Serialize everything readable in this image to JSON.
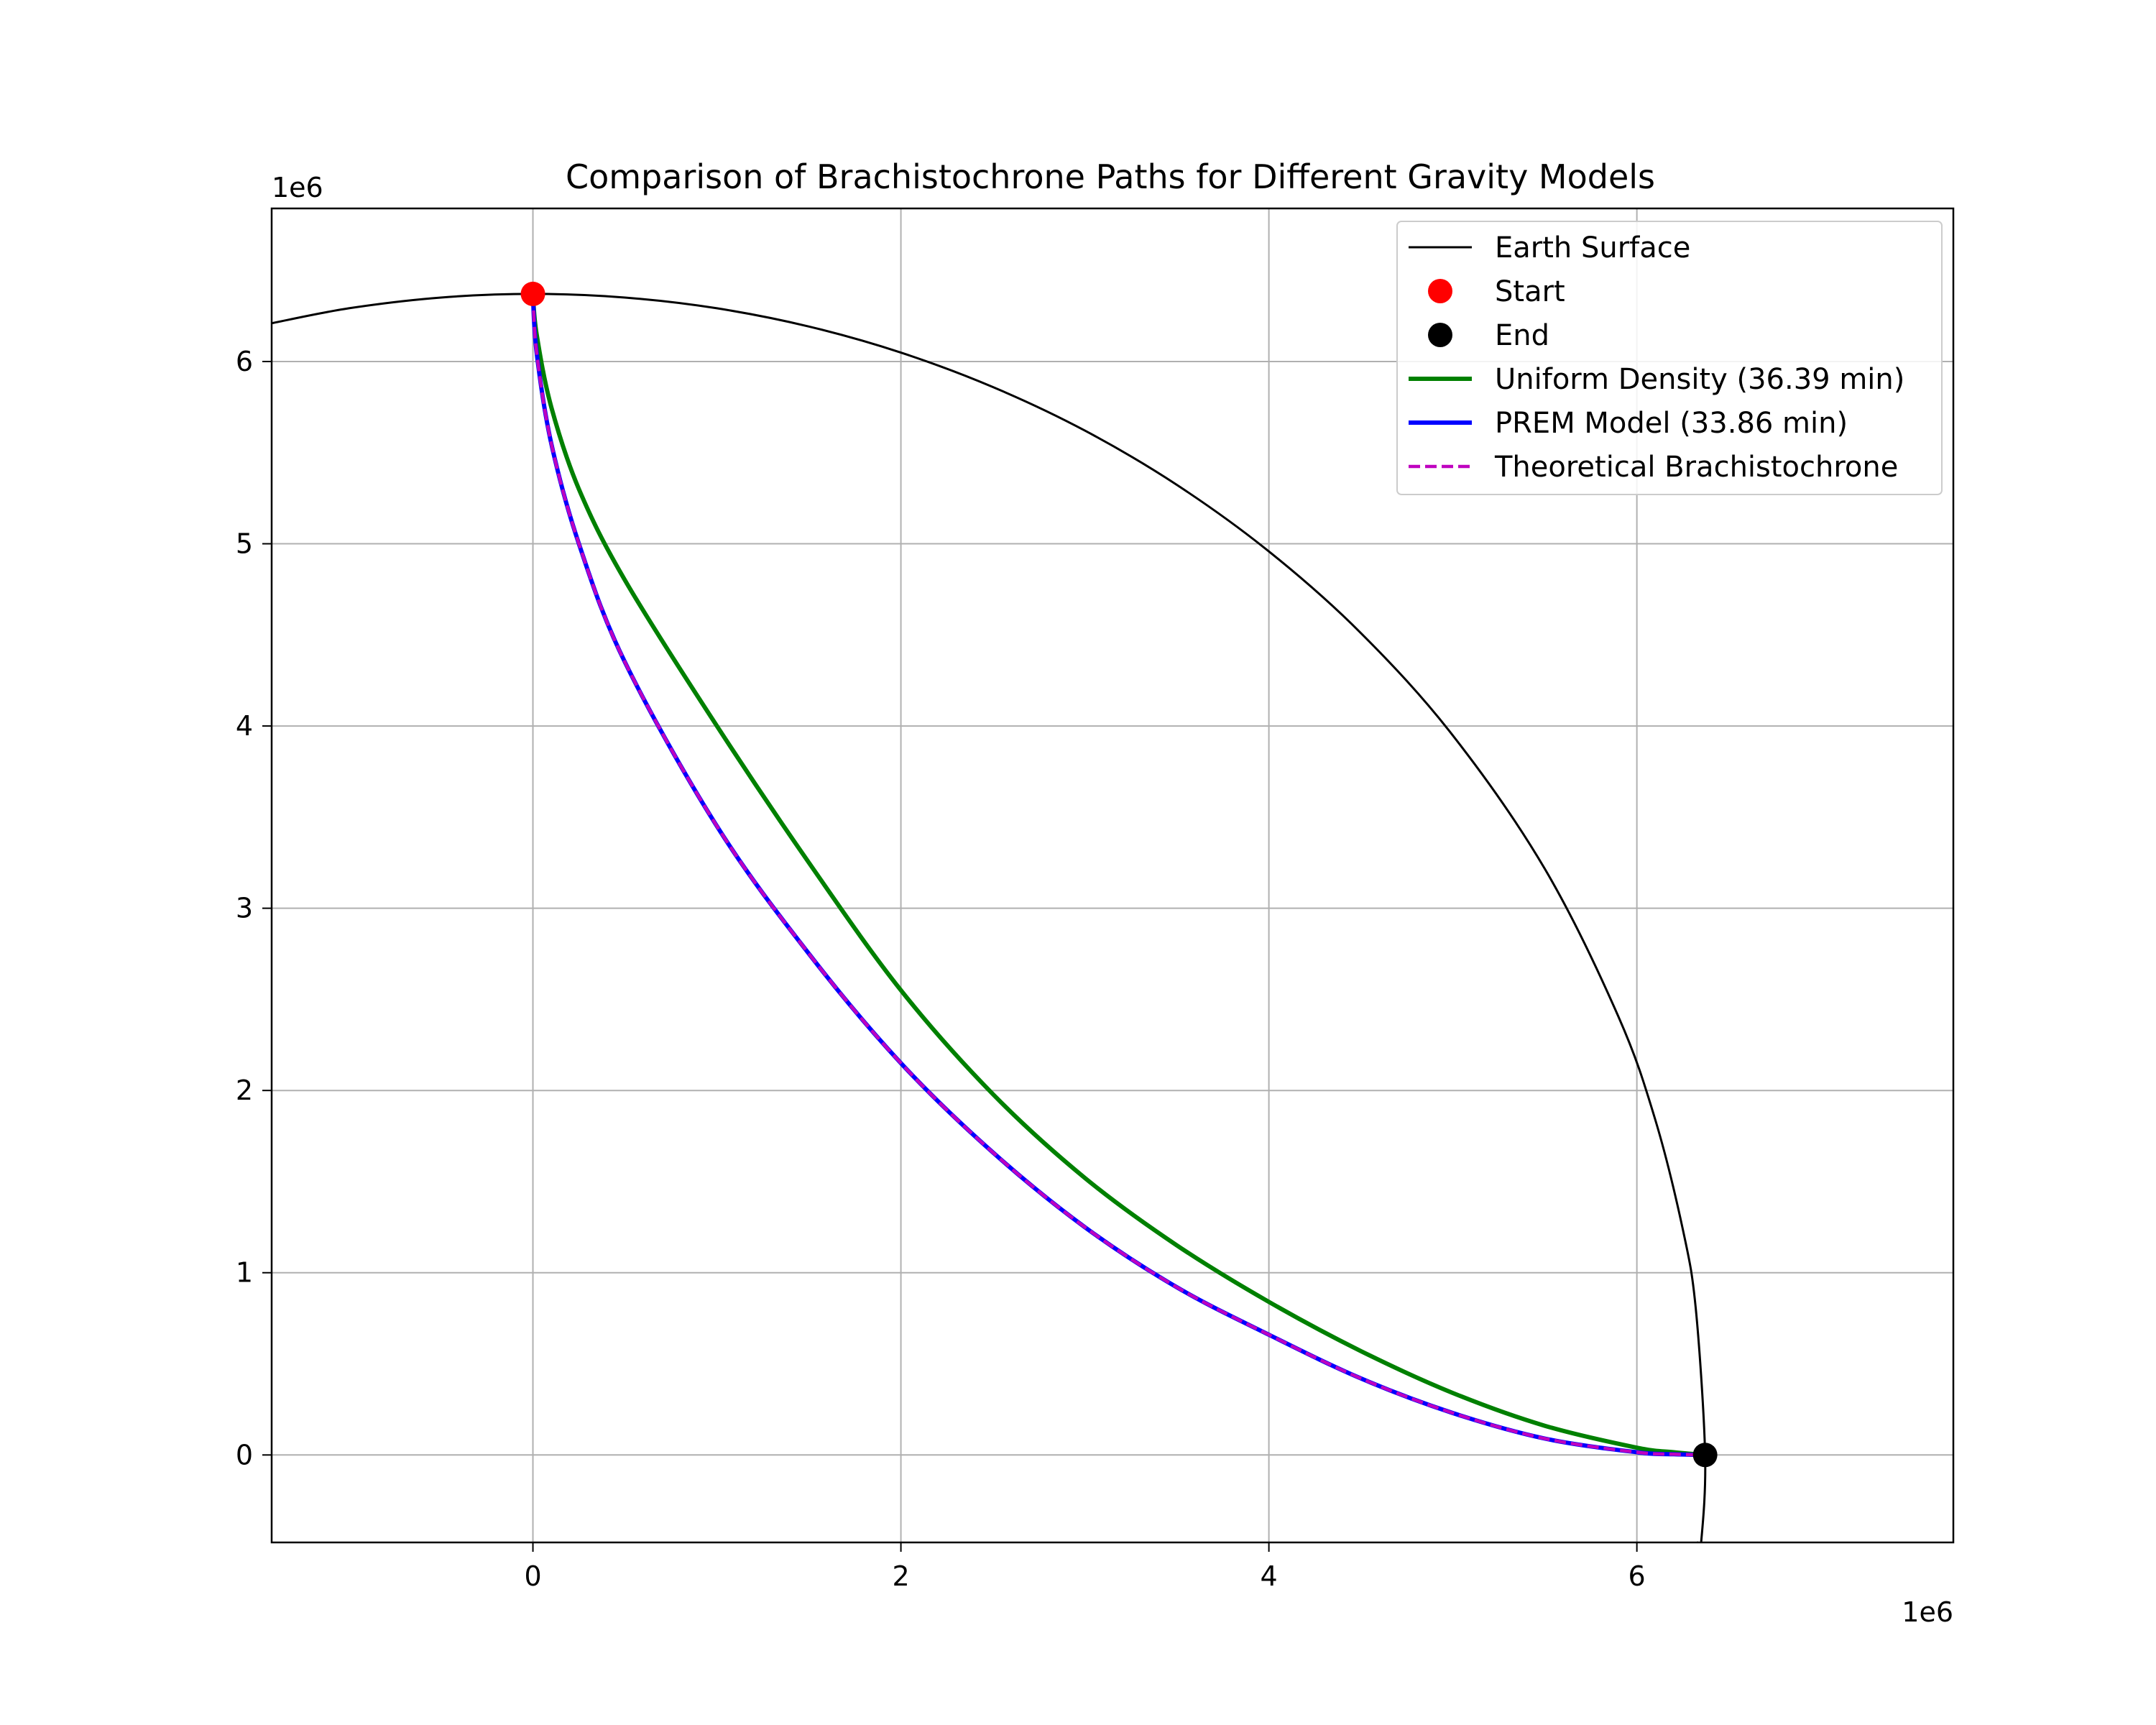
{
  "chart_data": {
    "type": "line",
    "title": "Comparison of Brachistochrone Paths for Different Gravity Models",
    "xlabel": "",
    "ylabel": "",
    "x_offset_label": "1e6",
    "y_offset_label": "1e6",
    "xlim": [
      -1.42,
      7.72
    ],
    "ylim": [
      -0.48,
      6.84
    ],
    "xticks": [
      0,
      2,
      4,
      6
    ],
    "yticks": [
      0,
      1,
      2,
      3,
      4,
      5,
      6
    ],
    "grid": true,
    "legend_position": "top-right",
    "series": [
      {
        "name": "Earth Surface",
        "style": "line",
        "color": "#000000",
        "width": 1.0,
        "x": [
          -1.42,
          -1.0,
          -0.5,
          0.0,
          0.5,
          1.0,
          1.5,
          2.0,
          2.5,
          3.0,
          3.5,
          4.0,
          4.5,
          5.0,
          5.5,
          5.9,
          6.1,
          6.25,
          6.32,
          6.371,
          6.35,
          6.33
        ],
        "y": [
          6.21,
          6.292,
          6.351,
          6.371,
          6.351,
          6.292,
          6.192,
          6.049,
          5.86,
          5.621,
          5.323,
          4.958,
          4.51,
          3.948,
          3.216,
          2.405,
          1.839,
          1.236,
          0.804,
          0.0,
          -0.47,
          -0.48
        ]
      },
      {
        "name": "Start",
        "style": "marker",
        "color": "#ff0000",
        "x": [
          0.0
        ],
        "y": [
          6.371
        ]
      },
      {
        "name": "End",
        "style": "marker",
        "color": "#000000",
        "x": [
          6.371
        ],
        "y": [
          0.0
        ]
      },
      {
        "name": "Uniform Density (36.39 min)",
        "style": "line",
        "color": "#008000",
        "width": 2.0,
        "x": [
          0.0,
          0.02,
          0.1,
          0.25,
          0.5,
          1.0,
          1.5,
          2.0,
          2.5,
          3.0,
          3.5,
          4.0,
          4.5,
          5.0,
          5.5,
          6.0,
          6.2,
          6.371
        ],
        "y": [
          6.371,
          6.15,
          5.75,
          5.3,
          4.8,
          4.0,
          3.25,
          2.55,
          1.98,
          1.52,
          1.15,
          0.84,
          0.57,
          0.34,
          0.16,
          0.04,
          0.015,
          0.0
        ]
      },
      {
        "name": "PREM Model (33.86 min)",
        "style": "line",
        "color": "#0000ff",
        "width": 2.0,
        "x": [
          0.0,
          0.02,
          0.1,
          0.25,
          0.5,
          1.0,
          1.5,
          2.0,
          2.5,
          3.0,
          3.5,
          4.0,
          4.5,
          5.0,
          5.5,
          6.0,
          6.2,
          6.371
        ],
        "y": [
          6.371,
          6.05,
          5.55,
          5.0,
          4.35,
          3.45,
          2.75,
          2.15,
          1.66,
          1.25,
          0.92,
          0.66,
          0.42,
          0.23,
          0.09,
          0.015,
          0.004,
          0.0
        ]
      },
      {
        "name": "Theoretical Brachistochrone",
        "style": "dashed",
        "color": "#bf00bf",
        "width": 1.5,
        "x": [
          0.0,
          0.02,
          0.1,
          0.25,
          0.5,
          1.0,
          1.5,
          2.0,
          2.5,
          3.0,
          3.5,
          4.0,
          4.5,
          5.0,
          5.5,
          6.0,
          6.2,
          6.371
        ],
        "y": [
          6.371,
          6.05,
          5.55,
          5.0,
          4.35,
          3.45,
          2.75,
          2.15,
          1.66,
          1.25,
          0.92,
          0.66,
          0.42,
          0.23,
          0.09,
          0.015,
          0.004,
          0.0
        ]
      }
    ]
  }
}
